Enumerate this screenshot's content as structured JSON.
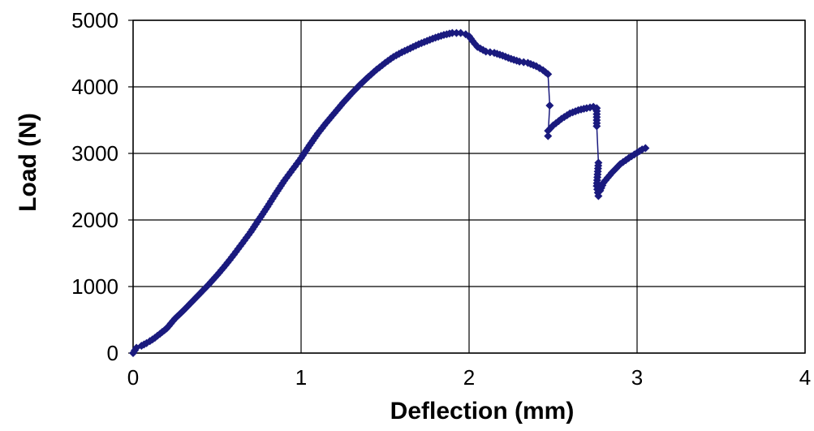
{
  "chart_data": {
    "type": "line",
    "title": "",
    "xlabel": "Deflection (mm)",
    "ylabel": "Load (N)",
    "xlim": [
      0,
      4
    ],
    "ylim": [
      0,
      5000
    ],
    "x_ticks": [
      "0",
      "1",
      "2",
      "3",
      "4"
    ],
    "y_ticks": [
      "0",
      "1000",
      "2000",
      "3000",
      "4000",
      "5000"
    ],
    "grid": true,
    "legend": "none",
    "marker": "diamond",
    "series_color": "#1a1a7e",
    "series": [
      {
        "points": [
          [
            0,
            0
          ],
          [
            0.02,
            80
          ],
          [
            0.05,
            110
          ],
          [
            0.08,
            150
          ],
          [
            0.1,
            180
          ],
          [
            0.13,
            230
          ],
          [
            0.16,
            290
          ],
          [
            0.2,
            370
          ],
          [
            0.25,
            520
          ],
          [
            0.3,
            640
          ],
          [
            0.35,
            770
          ],
          [
            0.4,
            900
          ],
          [
            0.45,
            1030
          ],
          [
            0.5,
            1170
          ],
          [
            0.55,
            1320
          ],
          [
            0.6,
            1480
          ],
          [
            0.65,
            1650
          ],
          [
            0.7,
            1820
          ],
          [
            0.75,
            2010
          ],
          [
            0.8,
            2200
          ],
          [
            0.85,
            2400
          ],
          [
            0.9,
            2590
          ],
          [
            0.95,
            2760
          ],
          [
            1.0,
            2930
          ],
          [
            1.05,
            3120
          ],
          [
            1.1,
            3300
          ],
          [
            1.15,
            3460
          ],
          [
            1.2,
            3610
          ],
          [
            1.25,
            3760
          ],
          [
            1.3,
            3900
          ],
          [
            1.35,
            4030
          ],
          [
            1.4,
            4150
          ],
          [
            1.45,
            4260
          ],
          [
            1.5,
            4360
          ],
          [
            1.55,
            4450
          ],
          [
            1.6,
            4520
          ],
          [
            1.65,
            4580
          ],
          [
            1.7,
            4640
          ],
          [
            1.75,
            4690
          ],
          [
            1.8,
            4740
          ],
          [
            1.85,
            4780
          ],
          [
            1.9,
            4810
          ],
          [
            1.95,
            4810
          ],
          [
            1.98,
            4790
          ],
          [
            2.0,
            4760
          ],
          [
            2.02,
            4690
          ],
          [
            2.05,
            4600
          ],
          [
            2.1,
            4530
          ],
          [
            2.15,
            4510
          ],
          [
            2.2,
            4470
          ],
          [
            2.25,
            4420
          ],
          [
            2.3,
            4380
          ],
          [
            2.35,
            4360
          ],
          [
            2.4,
            4310
          ],
          [
            2.44,
            4250
          ],
          [
            2.47,
            4190
          ],
          [
            2.48,
            3720
          ],
          [
            2.47,
            3260
          ],
          [
            2.47,
            3340
          ],
          [
            2.5,
            3420
          ],
          [
            2.55,
            3520
          ],
          [
            2.6,
            3600
          ],
          [
            2.65,
            3650
          ],
          [
            2.7,
            3680
          ],
          [
            2.74,
            3700
          ],
          [
            2.76,
            3680
          ],
          [
            2.76,
            3410
          ],
          [
            2.77,
            2860
          ],
          [
            2.76,
            2510
          ],
          [
            2.77,
            2360
          ],
          [
            2.78,
            2440
          ],
          [
            2.8,
            2560
          ],
          [
            2.85,
            2710
          ],
          [
            2.9,
            2840
          ],
          [
            2.95,
            2930
          ],
          [
            3.0,
            3010
          ],
          [
            3.03,
            3060
          ],
          [
            3.05,
            3080
          ]
        ]
      }
    ]
  }
}
